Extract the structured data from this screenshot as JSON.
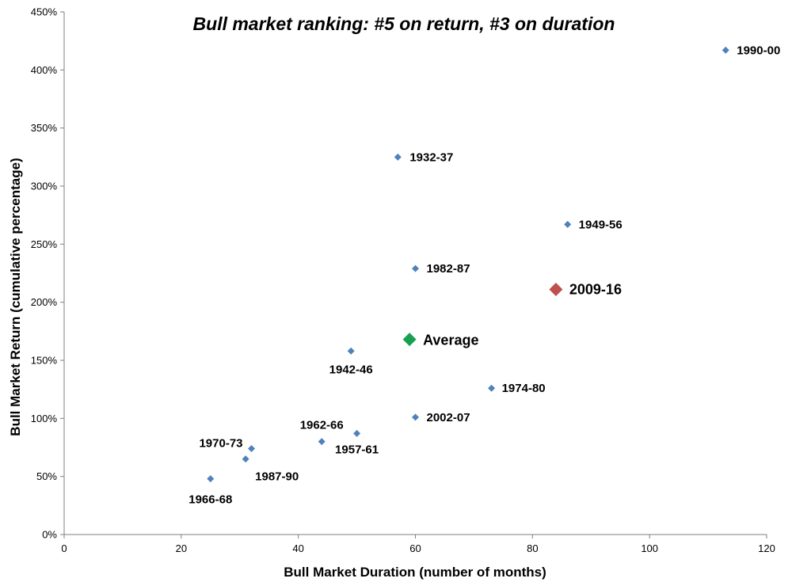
{
  "chart_data": {
    "type": "scatter",
    "title": "Bull market ranking: #5 on return, #3 on duration",
    "xlabel": "Bull Market Duration (number of months)",
    "ylabel": "Bull Market Return (cumulative percentage)",
    "xlim": [
      0,
      120
    ],
    "ylim": [
      0,
      450
    ],
    "x_ticks": [
      0,
      20,
      40,
      60,
      80,
      100,
      120
    ],
    "y_ticks": [
      0,
      50,
      100,
      150,
      200,
      250,
      300,
      350,
      400,
      450
    ],
    "y_tick_suffix": "%",
    "grid": false,
    "points": [
      {
        "label": "1990-00",
        "x": 113,
        "y": 417,
        "color": "#4f81bd",
        "highlight": false
      },
      {
        "label": "1932-37",
        "x": 57,
        "y": 325,
        "color": "#4f81bd",
        "highlight": false
      },
      {
        "label": "1949-56",
        "x": 86,
        "y": 267,
        "color": "#4f81bd",
        "highlight": false
      },
      {
        "label": "1982-87",
        "x": 60,
        "y": 229,
        "color": "#4f81bd",
        "highlight": false
      },
      {
        "label": "2009-16",
        "x": 84,
        "y": 211,
        "color": "#c0504d",
        "highlight": true
      },
      {
        "label": "Average",
        "x": 59,
        "y": 168,
        "color": "#17a050",
        "highlight": true
      },
      {
        "label": "1942-46",
        "x": 49,
        "y": 158,
        "color": "#4f81bd",
        "highlight": false
      },
      {
        "label": "1974-80",
        "x": 73,
        "y": 126,
        "color": "#4f81bd",
        "highlight": false
      },
      {
        "label": "2002-07",
        "x": 60,
        "y": 101,
        "color": "#4f81bd",
        "highlight": false
      },
      {
        "label": "1957-61",
        "x": 50,
        "y": 87,
        "color": "#4f81bd",
        "highlight": false
      },
      {
        "label": "1962-66",
        "x": 44,
        "y": 80,
        "color": "#4f81bd",
        "highlight": false
      },
      {
        "label": "1970-73",
        "x": 32,
        "y": 74,
        "color": "#4f81bd",
        "highlight": false
      },
      {
        "label": "1987-90",
        "x": 31,
        "y": 65,
        "color": "#4f81bd",
        "highlight": false
      },
      {
        "label": "1966-68",
        "x": 25,
        "y": 48,
        "color": "#4f81bd",
        "highlight": false
      }
    ],
    "colors": {
      "series": "#4f81bd",
      "current": "#c0504d",
      "average": "#17a050"
    }
  }
}
